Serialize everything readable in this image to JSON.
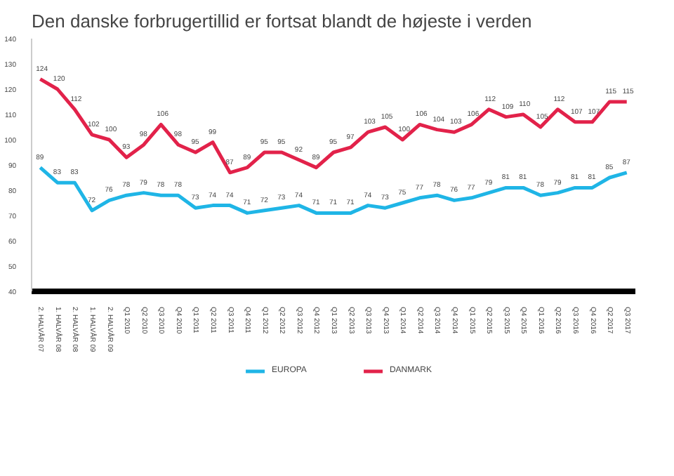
{
  "chart_data": {
    "type": "line",
    "title": "Den danske forbrugertillid er fortsat blandt de højeste i verden",
    "categories": [
      "2. HALVÅR 07",
      "1. HALVÅR 08",
      "2. HALVÅR 08",
      "1. HALVÅR 09",
      "2. HALVÅR 09",
      "Q1 2010",
      "Q2 2010",
      "Q3 2010",
      "Q4 2010",
      "Q1 2011",
      "Q2 2011",
      "Q3 2011",
      "Q4 2011",
      "Q1 2012",
      "Q2 2012",
      "Q3 2012",
      "Q4 2012",
      "Q1 2013",
      "Q2 2013",
      "Q3 2013",
      "Q4 2013",
      "Q1 2014",
      "Q2 2014",
      "Q3 2014",
      "Q4 2014",
      "Q1 2015",
      "Q2 2015",
      "Q3 2015",
      "Q4 2015",
      "Q1 2016",
      "Q2 2016",
      "Q3 2016",
      "Q4 2016",
      "Q2 2017",
      "Q3 2017"
    ],
    "series": [
      {
        "name": "EUROPA",
        "color": "#1fb5e6",
        "values": [
          89,
          83,
          83,
          72,
          76,
          78,
          79,
          78,
          78,
          73,
          74,
          74,
          71,
          72,
          73,
          74,
          71,
          71,
          71,
          74,
          73,
          75,
          77,
          78,
          76,
          77,
          79,
          81,
          81,
          78,
          79,
          81,
          81,
          85,
          87
        ]
      },
      {
        "name": "DANMARK",
        "color": "#e2224a",
        "values": [
          124,
          120,
          112,
          102,
          100,
          93,
          98,
          106,
          98,
          95,
          99,
          87,
          89,
          95,
          95,
          92,
          89,
          95,
          97,
          103,
          105,
          100,
          106,
          104,
          103,
          106,
          112,
          109,
          110,
          105,
          112,
          107,
          107,
          115,
          115
        ]
      }
    ],
    "ylim": [
      40,
      140
    ],
    "yticks": [
      40,
      50,
      60,
      70,
      80,
      90,
      100,
      110,
      120,
      130,
      140
    ],
    "grid": false,
    "legend": "bottom",
    "data_labels": true,
    "marker": "none",
    "line_style": "solid"
  }
}
